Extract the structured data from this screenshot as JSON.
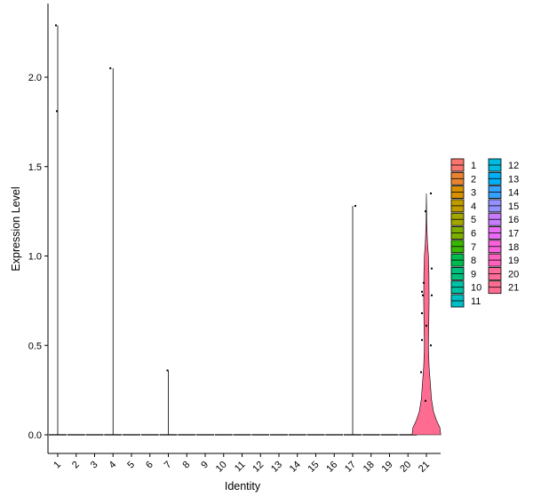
{
  "chart_data": {
    "type": "violin",
    "xlabel": "Identity",
    "ylabel": "Expression Level",
    "ylim": [
      -0.1,
      2.42
    ],
    "yticks": [
      0.0,
      0.5,
      1.0,
      1.5,
      2.0
    ],
    "ytick_labels": [
      "0.0",
      "0.5",
      "1.0",
      "1.5",
      "2.0"
    ],
    "categories": [
      "1",
      "2",
      "3",
      "4",
      "5",
      "6",
      "7",
      "8",
      "9",
      "10",
      "11",
      "12",
      "13",
      "14",
      "15",
      "16",
      "17",
      "18",
      "19",
      "20",
      "21"
    ],
    "colors": [
      "#F8766D",
      "#EA8331",
      "#D89000",
      "#C09B00",
      "#A3A500",
      "#7CAE00",
      "#39B600",
      "#00BB4E",
      "#00BF7D",
      "#00C1A3",
      "#00BFC4",
      "#00BAE0",
      "#00B0F6",
      "#35A2FF",
      "#9590FF",
      "#C77CFF",
      "#E76BF3",
      "#FA62DB",
      "#FF62BC",
      "#FF6A98",
      "#FF6C91"
    ],
    "violins": [
      {
        "category": "1",
        "max": 2.29,
        "points": [
          {
            "y": 2.29,
            "dx": -2
          },
          {
            "y": 1.81,
            "dx": -1
          }
        ]
      },
      {
        "category": "2",
        "max": 0,
        "points": []
      },
      {
        "category": "3",
        "max": 0,
        "points": []
      },
      {
        "category": "4",
        "max": 2.05,
        "points": [
          {
            "y": 2.05,
            "dx": -3
          }
        ]
      },
      {
        "category": "5",
        "max": 0,
        "points": []
      },
      {
        "category": "6",
        "max": 0,
        "points": []
      },
      {
        "category": "7",
        "max": 0.36,
        "points": [
          {
            "y": 0.36,
            "dx": -1
          }
        ]
      },
      {
        "category": "8",
        "max": 0,
        "points": []
      },
      {
        "category": "9",
        "max": 0,
        "points": []
      },
      {
        "category": "10",
        "max": 0,
        "points": []
      },
      {
        "category": "11",
        "max": 0,
        "points": []
      },
      {
        "category": "12",
        "max": 0,
        "points": []
      },
      {
        "category": "13",
        "max": 0,
        "points": []
      },
      {
        "category": "14",
        "max": 0,
        "points": []
      },
      {
        "category": "15",
        "max": 0,
        "points": []
      },
      {
        "category": "16",
        "max": 0,
        "points": []
      },
      {
        "category": "17",
        "max": 1.28,
        "points": [
          {
            "y": 1.28,
            "dx": 3
          }
        ]
      },
      {
        "category": "18",
        "max": 0,
        "points": []
      },
      {
        "category": "19",
        "max": 0,
        "points": []
      },
      {
        "category": "20",
        "max": 0,
        "points": []
      },
      {
        "category": "21",
        "max": 1.35,
        "density": [
          [
            0.0,
            0.85
          ],
          [
            0.04,
            0.8
          ],
          [
            0.08,
            0.6
          ],
          [
            0.13,
            0.42
          ],
          [
            0.2,
            0.3
          ],
          [
            0.28,
            0.24
          ],
          [
            0.38,
            0.16
          ],
          [
            0.5,
            0.12
          ],
          [
            0.6,
            0.14
          ],
          [
            0.75,
            0.16
          ],
          [
            0.9,
            0.15
          ],
          [
            1.0,
            0.12
          ],
          [
            1.08,
            0.06
          ],
          [
            1.2,
            0.02
          ],
          [
            1.35,
            0.0
          ]
        ],
        "points": [
          {
            "y": 1.35,
            "dx": 5
          },
          {
            "y": 1.25,
            "dx": -1
          },
          {
            "y": 0.93,
            "dx": 6
          },
          {
            "y": 0.85,
            "dx": -3
          },
          {
            "y": 0.8,
            "dx": -5
          },
          {
            "y": 0.78,
            "dx": -4
          },
          {
            "y": 0.78,
            "dx": 6
          },
          {
            "y": 0.68,
            "dx": -5
          },
          {
            "y": 0.61,
            "dx": 0
          },
          {
            "y": 0.53,
            "dx": -5
          },
          {
            "y": 0.5,
            "dx": 5
          },
          {
            "y": 0.35,
            "dx": -6
          },
          {
            "y": 0.19,
            "dx": -1
          }
        ]
      }
    ],
    "legend": {
      "placement": "right",
      "columns": 2,
      "entries": [
        "1",
        "2",
        "3",
        "4",
        "5",
        "6",
        "7",
        "8",
        "9",
        "10",
        "11",
        "12",
        "13",
        "14",
        "15",
        "16",
        "17",
        "18",
        "19",
        "20",
        "21"
      ]
    }
  }
}
